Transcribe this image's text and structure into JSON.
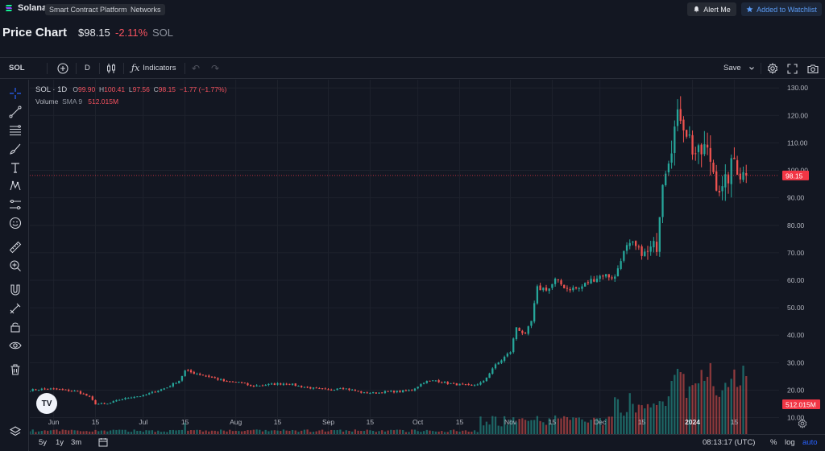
{
  "header": {
    "brand": "Solana",
    "tags": [
      "Smart Contract Platform",
      "Networks"
    ],
    "alert_label": "Alert Me",
    "watchlist_label": "Added to Watchlist"
  },
  "title_row": {
    "title": "Price Chart",
    "price": "$98.15",
    "change": "-2.11%",
    "symbol": "SOL"
  },
  "toolbar": {
    "symbol": "SOL",
    "interval": "D",
    "indicators_label": "Indicators",
    "save_label": "Save"
  },
  "legend": {
    "title": "SOL · 1D",
    "open_label": "O",
    "open": "99.90",
    "high_label": "H",
    "high": "100.41",
    "low_label": "L",
    "low": "97.56",
    "close_label": "C",
    "close": "98.15",
    "change": "−1.77 (−1.77%)",
    "volume_label": "Volume",
    "volume_sma": "SMA 9",
    "volume_value": "512.015M"
  },
  "price_axis": {
    "last_price_label": "98.15",
    "volume_label": "512.015M"
  },
  "bottom_bar": {
    "ranges": [
      "5y",
      "1y",
      "3m"
    ],
    "clock": "08:13:17 (UTC)",
    "percent": "%",
    "log": "log",
    "auto": "auto"
  },
  "colors": {
    "up": "#26a69a",
    "down": "#ef5350",
    "background": "#131722",
    "grid": "#1e222d",
    "last_price": "#f23645",
    "accent_blue": "#2962ff"
  },
  "icons": {
    "left_tools": [
      "crosshair-icon",
      "trend-line-icon",
      "fib-icon",
      "brush-icon",
      "text-icon",
      "pattern-icon",
      "forecast-icon",
      "emoji-icon",
      "ruler-icon",
      "zoom-in-icon",
      "magnet-icon",
      "stay-drawing-icon",
      "lock-icon",
      "eye-icon",
      "trash-icon",
      "layers-icon"
    ]
  },
  "chart_data": {
    "type": "candlestick",
    "title": "SOL · 1D",
    "y_ticks": [
      10,
      20,
      30,
      40,
      50,
      60,
      70,
      80,
      90,
      100,
      110,
      120,
      130
    ],
    "ylim": [
      4,
      133
    ],
    "x_ticks": [
      {
        "label": "Jun",
        "index": 8
      },
      {
        "label": "15",
        "index": 22
      },
      {
        "label": "Jul",
        "index": 38
      },
      {
        "label": "15",
        "index": 52
      },
      {
        "label": "Aug",
        "index": 69
      },
      {
        "label": "15",
        "index": 83
      },
      {
        "label": "Sep",
        "index": 100
      },
      {
        "label": "15",
        "index": 114
      },
      {
        "label": "Oct",
        "index": 130
      },
      {
        "label": "15",
        "index": 144
      },
      {
        "label": "Nov",
        "index": 161
      },
      {
        "label": "15",
        "index": 175
      },
      {
        "label": "Dec",
        "index": 191
      },
      {
        "label": "15",
        "index": 205
      },
      {
        "label": "2024",
        "index": 222
      },
      {
        "label": "15",
        "index": 236
      }
    ],
    "x_range": [
      0,
      251
    ],
    "price_points": [
      [
        0,
        20
      ],
      [
        6,
        20.5
      ],
      [
        12,
        20
      ],
      [
        16,
        19.5
      ],
      [
        20,
        17.5
      ],
      [
        22,
        15
      ],
      [
        26,
        15
      ],
      [
        30,
        16.5
      ],
      [
        34,
        17.5
      ],
      [
        38,
        18
      ],
      [
        42,
        19.5
      ],
      [
        46,
        21
      ],
      [
        50,
        23.5
      ],
      [
        52,
        27
      ],
      [
        56,
        26
      ],
      [
        60,
        25
      ],
      [
        66,
        23
      ],
      [
        70,
        23
      ],
      [
        74,
        21.5
      ],
      [
        80,
        22
      ],
      [
        86,
        22.5
      ],
      [
        90,
        21.5
      ],
      [
        96,
        20.5
      ],
      [
        100,
        20
      ],
      [
        104,
        21
      ],
      [
        108,
        20
      ],
      [
        112,
        19
      ],
      [
        116,
        19
      ],
      [
        120,
        19.5
      ],
      [
        124,
        19.5
      ],
      [
        128,
        20
      ],
      [
        132,
        23
      ],
      [
        136,
        23.5
      ],
      [
        140,
        22.5
      ],
      [
        144,
        22
      ],
      [
        148,
        21.5
      ],
      [
        152,
        23
      ],
      [
        155,
        28
      ],
      [
        158,
        31
      ],
      [
        161,
        34
      ],
      [
        163,
        43
      ],
      [
        166,
        40
      ],
      [
        168,
        45
      ],
      [
        170,
        57
      ],
      [
        172,
        57
      ],
      [
        174,
        57
      ],
      [
        176,
        60
      ],
      [
        180,
        57
      ],
      [
        184,
        57
      ],
      [
        188,
        60
      ],
      [
        192,
        62
      ],
      [
        196,
        61
      ],
      [
        198,
        68
      ],
      [
        200,
        72
      ],
      [
        202,
        73
      ],
      [
        206,
        69
      ],
      [
        210,
        73
      ],
      [
        212,
        98
      ],
      [
        214,
        106
      ],
      [
        216,
        115
      ],
      [
        218,
        121
      ],
      [
        220,
        115
      ],
      [
        222,
        108
      ],
      [
        224,
        105
      ],
      [
        226,
        108
      ],
      [
        228,
        104
      ],
      [
        230,
        96
      ],
      [
        232,
        92
      ],
      [
        234,
        98
      ],
      [
        236,
        104
      ],
      [
        238,
        99
      ],
      [
        240,
        98.15
      ]
    ],
    "volume_ylim": [
      0,
      440
    ],
    "last_price": 98.15,
    "last_volume_label": "512.015M"
  }
}
